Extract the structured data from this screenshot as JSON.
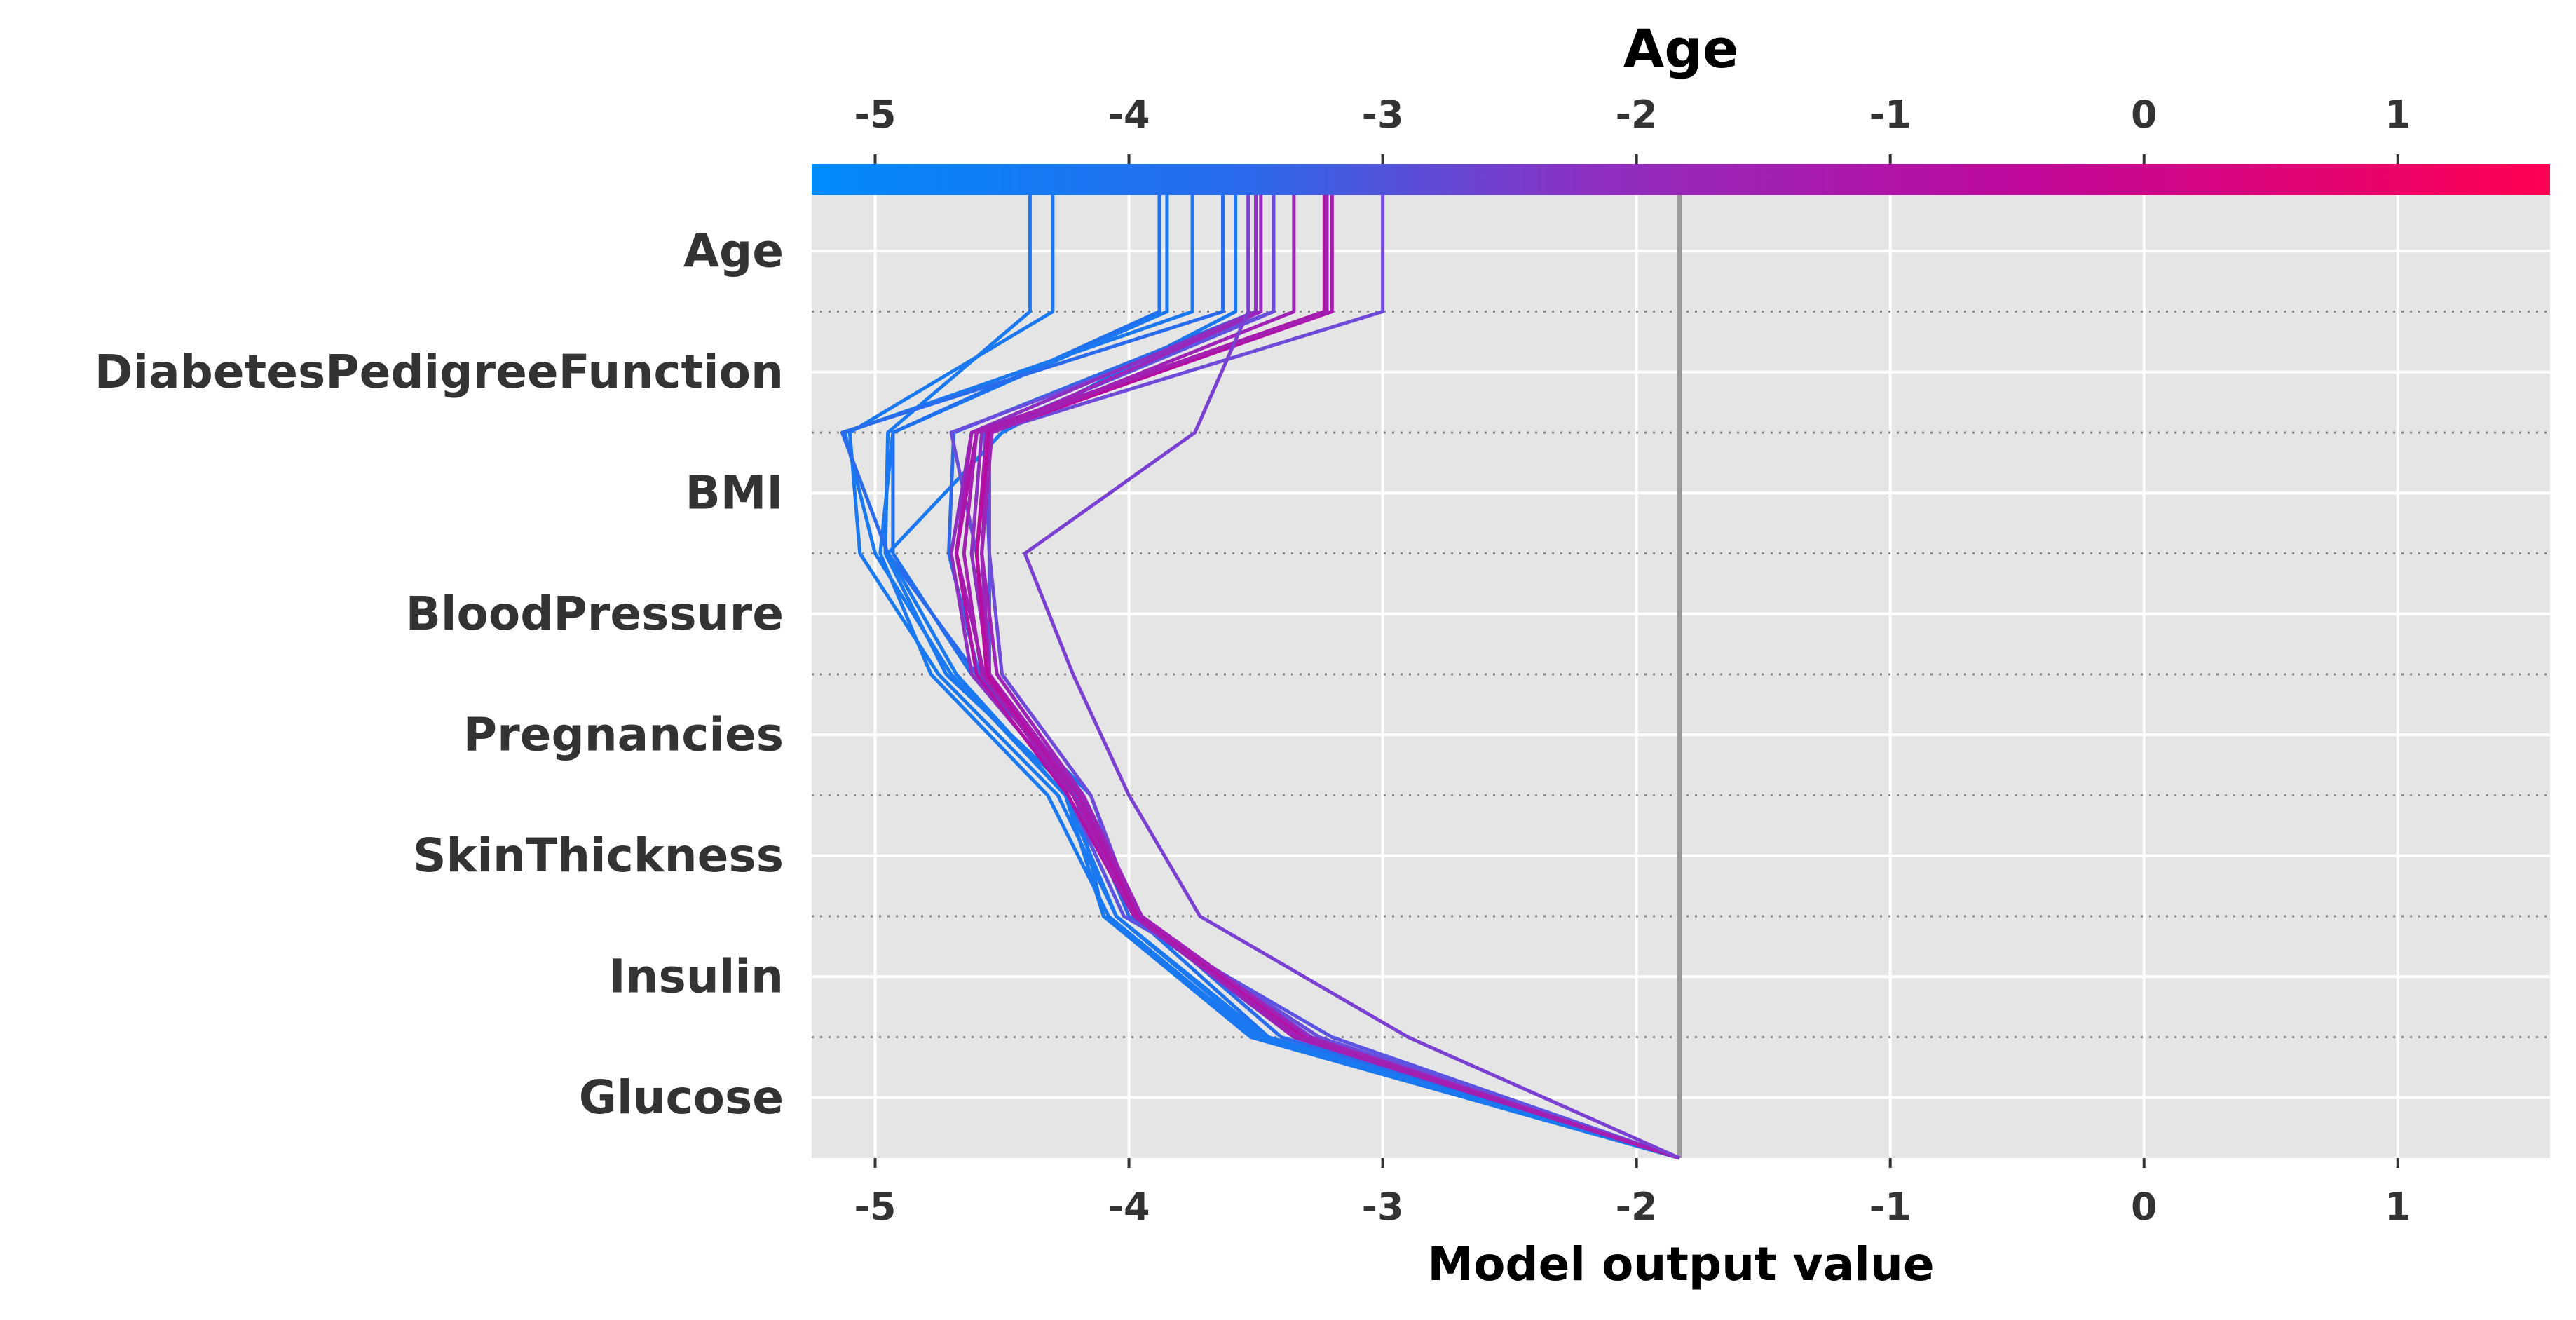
{
  "chart_data": {
    "type": "line",
    "chart_kind": "shap-decision-plot",
    "title": "Age",
    "xlabel": "Model output value",
    "ylabel": "",
    "xlim": [
      -5.25,
      1.6
    ],
    "x_ticks": [
      -5,
      -4,
      -3,
      -2,
      -1,
      0,
      1
    ],
    "x_tick_labels": [
      "-5",
      "-4",
      "-3",
      "-2",
      "-1",
      "0",
      "1"
    ],
    "base_value": -1.83,
    "grid": true,
    "background": "#e5e5e5",
    "colorbar": {
      "label": "Age",
      "range": [
        -5.25,
        1.6
      ],
      "colors": [
        "#008bfb",
        "#5b54e3",
        "#8e2fc2",
        "#c0089b",
        "#ff0052"
      ]
    },
    "features": [
      "Age",
      "DiabetesPedigreeFunction",
      "BMI",
      "BloodPressure",
      "Pregnancies",
      "SkinThickness",
      "Insulin",
      "Glucose"
    ],
    "series": [
      {
        "values": [
          -1.83,
          -3.49,
          -4.1,
          -4.21,
          -4.72,
          -4.96,
          -4.95,
          -4.39
        ],
        "color": "#1a78f0"
      },
      {
        "values": [
          -1.83,
          -3.48,
          -4.05,
          -4.28,
          -4.75,
          -5.06,
          -5.1,
          -4.3
        ],
        "color": "#1a78f0"
      },
      {
        "values": [
          -1.83,
          -3.5,
          -4.08,
          -4.32,
          -4.78,
          -4.98,
          -4.93,
          -3.85
        ],
        "color": "#1a78f0"
      },
      {
        "values": [
          -1.83,
          -3.45,
          -3.98,
          -4.15,
          -4.62,
          -4.93,
          -4.93,
          -3.88
        ],
        "color": "#1f70ee"
      },
      {
        "values": [
          -1.83,
          -3.52,
          -4.1,
          -4.25,
          -4.7,
          -5.0,
          -5.12,
          -3.75
        ],
        "color": "#1a78f0"
      },
      {
        "values": [
          -1.83,
          -3.4,
          -3.95,
          -4.18,
          -4.6,
          -4.95,
          -5.13,
          -3.63
        ],
        "color": "#2a6aec"
      },
      {
        "values": [
          -1.83,
          -3.46,
          -4.05,
          -4.25,
          -4.68,
          -4.95,
          -4.5,
          -3.58
        ],
        "color": "#1a78f0"
      },
      {
        "values": [
          -1.83,
          -3.3,
          -4.0,
          -4.2,
          -4.59,
          -4.71,
          -4.69,
          -3.5
        ],
        "color": "#2e69ea"
      },
      {
        "values": [
          -1.83,
          -3.2,
          -4.02,
          -4.24,
          -4.55,
          -4.55,
          -4.57,
          -3.43
        ],
        "color": "#5b54e3"
      },
      {
        "values": [
          -1.83,
          -3.25,
          -3.98,
          -4.2,
          -4.55,
          -4.6,
          -4.7,
          -3.43
        ],
        "color": "#6b4ddc"
      },
      {
        "values": [
          -1.83,
          -3.28,
          -3.97,
          -4.15,
          -4.5,
          -4.55,
          -4.55,
          -3.0
        ],
        "color": "#6f4ad9"
      },
      {
        "values": [
          -1.83,
          -3.3,
          -3.98,
          -4.22,
          -4.62,
          -4.7,
          -4.62,
          -3.5
        ],
        "color": "#8e2fc2"
      },
      {
        "values": [
          -1.83,
          -3.35,
          -3.98,
          -4.2,
          -4.55,
          -4.62,
          -4.58,
          -3.22
        ],
        "color": "#8e2fc2"
      },
      {
        "values": [
          -1.83,
          -3.3,
          -3.96,
          -4.19,
          -4.55,
          -4.58,
          -4.55,
          -3.48
        ],
        "color": "#9a26bb"
      },
      {
        "values": [
          -1.83,
          -3.35,
          -3.95,
          -4.22,
          -4.57,
          -4.68,
          -4.62,
          -3.2
        ],
        "color": "#a01fb4"
      },
      {
        "values": [
          -1.83,
          -3.3,
          -3.96,
          -4.2,
          -4.55,
          -4.6,
          -4.56,
          -3.2
        ],
        "color": "#a81aad"
      },
      {
        "values": [
          -1.83,
          -3.33,
          -3.98,
          -4.24,
          -4.6,
          -4.68,
          -4.6,
          -3.23
        ],
        "color": "#b011a6"
      },
      {
        "values": [
          -1.83,
          -3.32,
          -3.97,
          -4.22,
          -4.56,
          -4.6,
          -4.55,
          -3.22
        ],
        "color": "#b80c9f"
      },
      {
        "values": [
          -1.83,
          -3.29,
          -3.95,
          -4.18,
          -4.52,
          -4.58,
          -4.54,
          -3.35
        ],
        "color": "#9e23b6"
      },
      {
        "values": [
          -1.83,
          -3.33,
          -3.98,
          -4.22,
          -4.58,
          -4.65,
          -4.6,
          -3.22
        ],
        "color": "#a31fb2"
      },
      {
        "values": [
          -1.83,
          -2.9,
          -3.72,
          -4.0,
          -4.22,
          -4.41,
          -3.74,
          -3.53
        ],
        "color": "#7a40d2"
      }
    ]
  }
}
